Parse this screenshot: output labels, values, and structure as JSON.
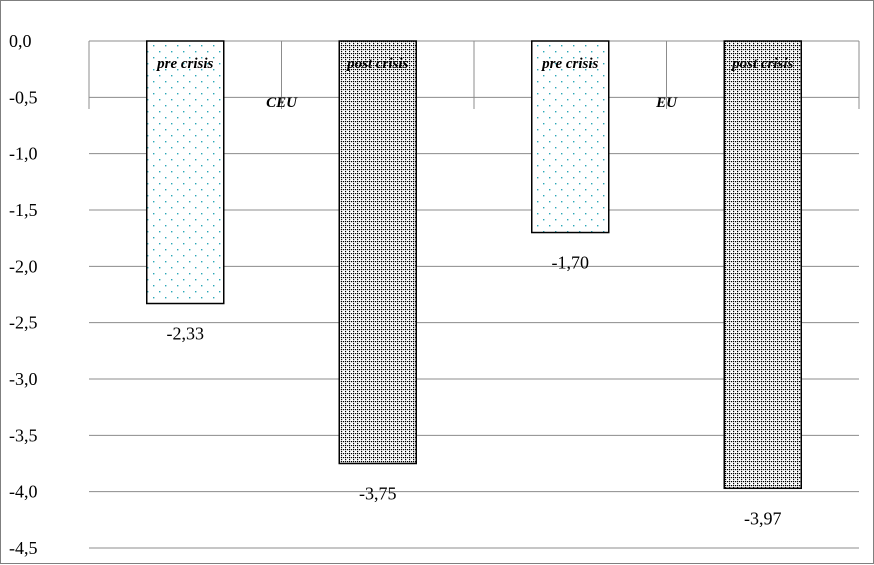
{
  "chart_data": {
    "type": "bar",
    "title": "",
    "xlabel": "",
    "ylabel": "",
    "ylim": [
      -4.5,
      0
    ],
    "yticks": [
      "0,0",
      "-0,5",
      "-1,0",
      "-1,5",
      "-2,0",
      "-2,5",
      "-3,0",
      "-3,5",
      "-4,0",
      "-4,5"
    ],
    "grid": true,
    "legend": "none",
    "groups": [
      {
        "name": "CEU",
        "bars": [
          {
            "label": "pre crisis",
            "value": -2.33,
            "value_label": "-2,33",
            "pattern": "sparse-dots"
          },
          {
            "label": "post crisis",
            "value": -3.75,
            "value_label": "-3,75",
            "pattern": "dense-grid"
          }
        ]
      },
      {
        "name": "EU",
        "bars": [
          {
            "label": "pre crisis",
            "value": -1.7,
            "value_label": "-1,70",
            "pattern": "sparse-dots"
          },
          {
            "label": "post crisis",
            "value": -3.97,
            "value_label": "-3,97",
            "pattern": "dense-grid"
          }
        ]
      }
    ],
    "colors": {
      "sparse_dot": "#2aa7b8",
      "dense_dot": "#000000",
      "grid": "#8c8c8c"
    }
  }
}
